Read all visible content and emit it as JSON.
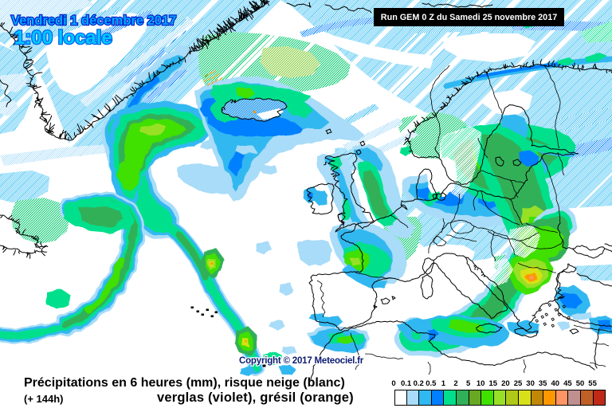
{
  "header": {
    "date_line": "Vendredi 1 décembre 2017",
    "time_line": "1:00 locale"
  },
  "run_box": {
    "label": "Run GEM 0 Z du Samedi 25 novembre 2017"
  },
  "copyright_label": "Copyright © 2017 Meteociel.fr",
  "caption": {
    "line1": "Précipitations en 6 heures (mm), risque neige (blanc)",
    "lead_time": "(+ 144h)",
    "line2": "verglas (violet), grésil (orange)"
  },
  "legend": {
    "unit": "mm",
    "labels": [
      "0",
      "0.1",
      "0.2",
      "0.5",
      "1",
      "2",
      "5",
      "10",
      "15",
      "20",
      "25",
      "30",
      "35",
      "40",
      "45",
      "50",
      "55"
    ],
    "colors": [
      "#ffffff",
      "#a8dcf8",
      "#30b8f0",
      "#0080ff",
      "#00e08c",
      "#30b058",
      "#68a824",
      "#40e000",
      "#98e028",
      "#b0c818",
      "#d8e018",
      "#c08808",
      "#ff9800",
      "#ff9464",
      "#c09090",
      "#c06028",
      "#c02818"
    ]
  },
  "map_palette": {
    "hatch_cyan": "#48ccf4",
    "light_blue": "#a8dcf8",
    "cyan": "#30b8f0",
    "blue": "#0080ff",
    "green_light": "#00e08c",
    "green": "#30b058",
    "green_olive": "#68a824",
    "green_bright": "#40e000",
    "yellow_green": "#98e028",
    "yellow": "#d8e018",
    "orange": "#ff9800",
    "coast": "#000000"
  }
}
